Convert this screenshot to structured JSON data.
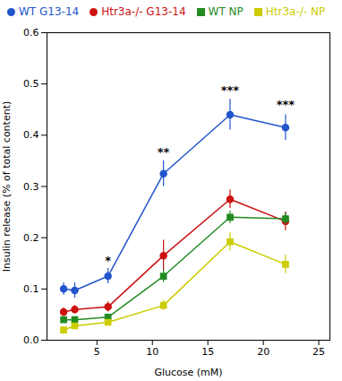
{
  "chart_data": {
    "type": "line",
    "xlabel": "Glucose (mM)",
    "ylabel": "Insulin release (% of total content)",
    "xlim": [
      0.5,
      26
    ],
    "ylim": [
      0,
      0.6
    ],
    "xticks": [
      5,
      10,
      15,
      20,
      25
    ],
    "yticks": [
      {
        "value": 0,
        "label": "0.0"
      },
      0.1,
      0.2,
      0.3,
      0.4,
      0.5,
      0.6
    ],
    "grid": false,
    "x": [
      2,
      3,
      6,
      11,
      17,
      22
    ],
    "series": [
      {
        "name": "WT G13-14",
        "color": "#2255CC",
        "marker": "circle",
        "line_style": "solid",
        "values": [
          0.1,
          0.097,
          0.125,
          0.325,
          0.44,
          0.415
        ],
        "errors": [
          0.012,
          0.015,
          0.015,
          0.025,
          0.03,
          0.025
        ]
      },
      {
        "name": "Htr3a-/- G13-14",
        "color": "#CC1111",
        "marker": "circle",
        "line_style": "solid",
        "values": [
          0.055,
          0.06,
          0.065,
          0.165,
          0.275,
          0.232
        ],
        "errors": [
          0.008,
          0.008,
          0.01,
          0.03,
          0.018,
          0.018
        ]
      },
      {
        "name": "WT NP",
        "color": "#228B22",
        "marker": "square",
        "line_style": "solid",
        "values": [
          0.04,
          0.04,
          0.045,
          0.125,
          0.24,
          0.237
        ],
        "errors": [
          0.006,
          0.006,
          0.006,
          0.012,
          0.012,
          0.012
        ]
      },
      {
        "name": "Htr3a-/- NP",
        "color": "#CCCC00",
        "marker": "square",
        "line_style": "solid",
        "values": [
          0.02,
          0.028,
          0.035,
          0.068,
          0.192,
          0.148
        ],
        "errors": [
          0.005,
          0.005,
          0.005,
          0.01,
          0.018,
          0.018
        ]
      }
    ],
    "annotations": [
      {
        "x": 11,
        "y": 0.36,
        "text": "**"
      },
      {
        "x": 17,
        "y": 0.48,
        "text": "***"
      },
      {
        "x": 22,
        "y": 0.452,
        "text": "***"
      },
      {
        "x": 6,
        "y": 0.148,
        "text": "*"
      }
    ]
  }
}
